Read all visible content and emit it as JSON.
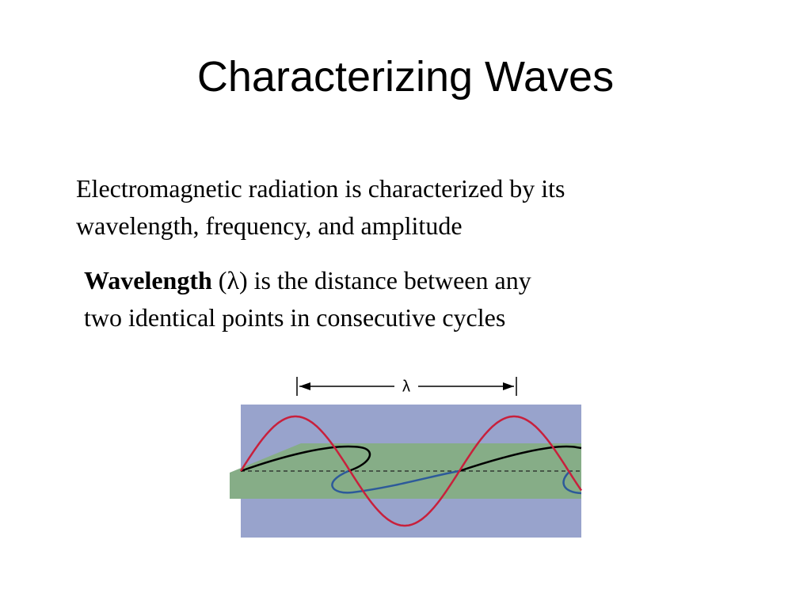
{
  "slide": {
    "title": "Characterizing Waves",
    "paragraph1": {
      "lines": [
        "Electromagnetic radiation is characterized by its",
        "wavelength, frequency, and amplitude"
      ]
    },
    "paragraph2": {
      "term": "Wavelength",
      "line1_rest": " (λ) is the distance between any",
      "line2": "two identical points in consecutive cycles"
    },
    "figure": {
      "label": "λ"
    }
  }
}
